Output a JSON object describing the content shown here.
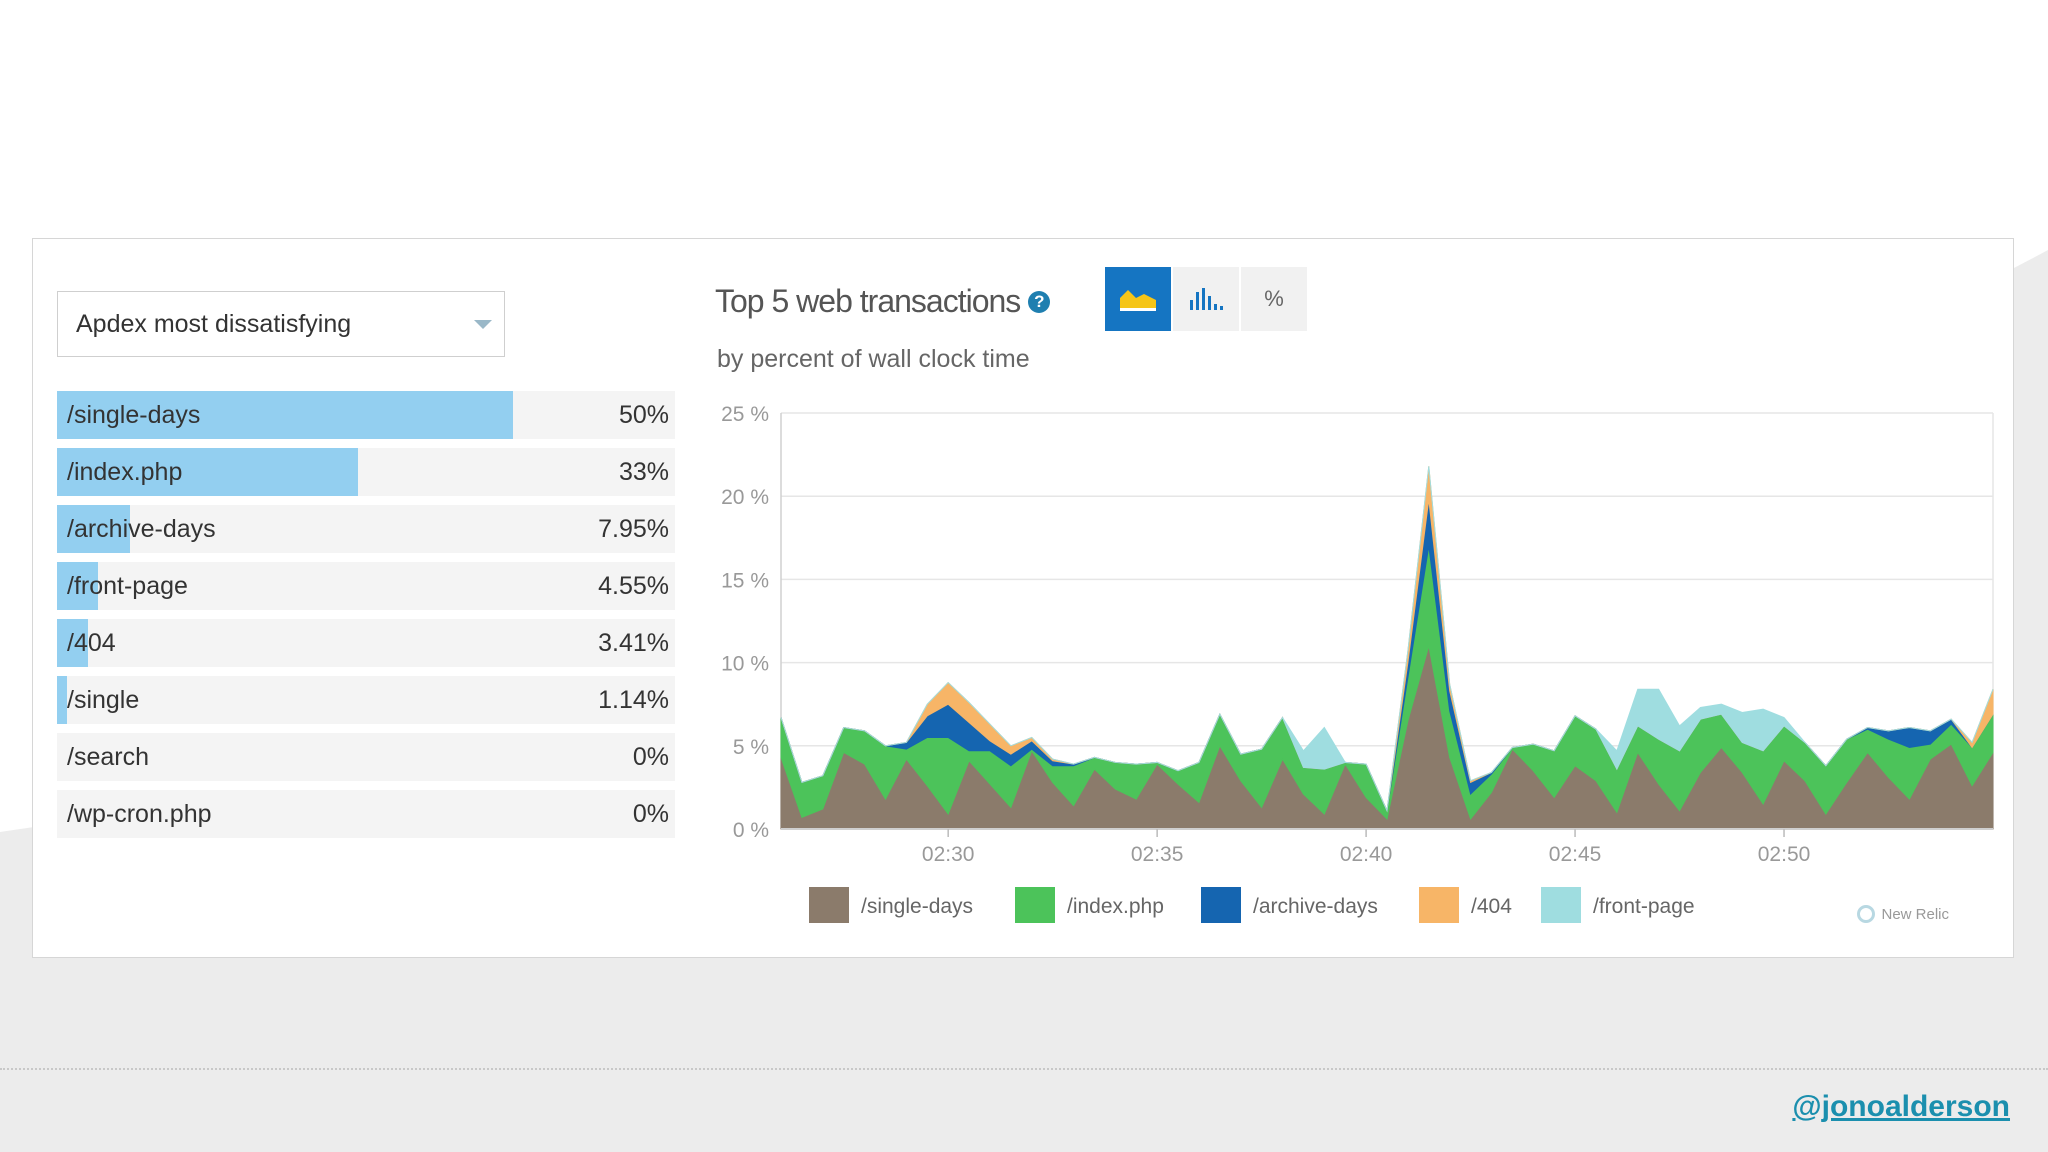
{
  "dropdown": {
    "selected": "Apdex most dissatisfying"
  },
  "transactions": [
    {
      "name": "/single-days",
      "pct_label": "50%",
      "fraction": 0.5
    },
    {
      "name": "/index.php",
      "pct_label": "33%",
      "fraction": 0.33
    },
    {
      "name": "/archive-days",
      "pct_label": "7.95%",
      "fraction": 0.0795
    },
    {
      "name": "/front-page",
      "pct_label": "4.55%",
      "fraction": 0.0455
    },
    {
      "name": "/404",
      "pct_label": "3.41%",
      "fraction": 0.0341
    },
    {
      "name": "/single",
      "pct_label": "1.14%",
      "fraction": 0.0114
    },
    {
      "name": "/search",
      "pct_label": "0%",
      "fraction": 0
    },
    {
      "name": "/wp-cron.php",
      "pct_label": "0%",
      "fraction": 0
    }
  ],
  "chart_header": {
    "title": "Top 5 web transactions",
    "subtitle": "by percent of wall clock time",
    "percent_button_label": "%"
  },
  "watermark": "New Relic",
  "handle": "@jonoalderson",
  "colors": {
    "single_days": "#8b7b6b",
    "index_php": "#4cc35a",
    "archive_days": "#1565b0",
    "x404": "#f7b567",
    "front_page": "#9fdde0",
    "active_button": "#1575c2",
    "bar_fill": "#93cff0"
  },
  "chart_data": {
    "type": "area",
    "stacked": true,
    "title": "Top 5 web transactions",
    "subtitle": "by percent of wall clock time",
    "xlabel": "",
    "ylabel": "",
    "x": [
      26.0,
      26.5,
      27.0,
      27.5,
      28.0,
      28.5,
      29.0,
      29.5,
      30.0,
      30.5,
      31.0,
      31.5,
      32.0,
      32.5,
      33.0,
      33.5,
      34.0,
      34.5,
      35.0,
      35.5,
      36.0,
      36.5,
      37.0,
      37.5,
      38.0,
      38.5,
      39.0,
      39.5,
      40.0,
      40.5,
      41.0,
      41.5,
      42.0,
      42.5,
      43.0,
      43.5,
      44.0,
      44.5,
      45.0,
      45.5,
      46.0,
      46.5,
      47.0,
      47.5,
      48.0,
      48.5,
      49.0,
      49.5,
      50.0,
      50.5,
      51.0,
      51.5,
      52.0,
      52.5,
      53.0,
      53.5,
      54.0,
      54.5,
      55.0
    ],
    "x_tick_values": [
      30,
      35,
      40,
      45,
      50
    ],
    "x_tick_labels": [
      "02:30",
      "02:35",
      "02:40",
      "02:45",
      "02:50"
    ],
    "xlim": [
      26,
      55
    ],
    "ylim": [
      0,
      25
    ],
    "y_ticks": [
      0,
      5,
      10,
      15,
      20,
      25
    ],
    "y_tick_labels": [
      "0 %",
      "5 %",
      "10 %",
      "15 %",
      "20 %",
      "25 %"
    ],
    "grid": true,
    "legend_position": "bottom",
    "series": [
      {
        "name": "/single-days",
        "color": "#8b7b6b",
        "values": [
          4.3,
          0.7,
          1.2,
          4.6,
          3.9,
          1.8,
          4.2,
          2.6,
          0.9,
          4.1,
          2.7,
          1.3,
          4.7,
          2.8,
          1.4,
          3.6,
          2.4,
          1.8,
          3.9,
          2.7,
          1.6,
          5.0,
          2.9,
          1.3,
          4.2,
          2.1,
          0.9,
          3.9,
          1.9,
          0.6,
          6.5,
          11.0,
          4.3,
          0.6,
          2.2,
          4.8,
          3.5,
          1.9,
          3.8,
          2.9,
          1.0,
          4.6,
          2.7,
          1.1,
          3.4,
          4.9,
          3.4,
          1.5,
          4.1,
          2.9,
          0.9,
          2.8,
          4.6,
          3.1,
          1.8,
          4.2,
          5.1,
          2.6,
          4.6
        ]
      },
      {
        "name": "/index.php",
        "color": "#4cc35a",
        "values": [
          2.4,
          2.1,
          2.0,
          1.5,
          2.0,
          3.2,
          0.6,
          2.9,
          4.6,
          0.6,
          2.0,
          2.5,
          0.1,
          1.0,
          2.4,
          0.7,
          1.6,
          2.1,
          0.1,
          0.8,
          2.4,
          1.9,
          1.6,
          3.5,
          2.5,
          1.6,
          2.7,
          0.1,
          2.0,
          0.5,
          2.6,
          6.0,
          2.8,
          1.5,
          1.1,
          0.1,
          1.6,
          2.8,
          3.0,
          3.1,
          2.6,
          1.6,
          2.7,
          3.6,
          3.2,
          2.0,
          1.8,
          3.2,
          2.1,
          2.3,
          2.9,
          2.6,
          1.4,
          2.3,
          3.1,
          0.9,
          1.2,
          2.3,
          2.3
        ]
      },
      {
        "name": "/archive-days",
        "color": "#1565b0",
        "values": [
          0,
          0,
          0,
          0,
          0,
          0,
          0.4,
          1.3,
          2.0,
          1.7,
          0.6,
          0.7,
          0.5,
          0.3,
          0.1,
          0,
          0,
          0,
          0,
          0,
          0,
          0,
          0,
          0,
          0,
          0,
          0,
          0,
          0,
          0,
          0.9,
          2.8,
          1.2,
          0.7,
          0.1,
          0,
          0,
          0,
          0,
          0,
          0,
          0,
          0,
          0,
          0,
          0,
          0,
          0,
          0,
          0,
          0,
          0,
          0.1,
          0.5,
          1.2,
          0.8,
          0.3,
          0,
          0
        ]
      },
      {
        "name": "/404",
        "color": "#f7b567",
        "values": [
          0,
          0,
          0,
          0,
          0,
          0,
          0,
          0.7,
          1.3,
          1.2,
          1.0,
          0.5,
          0.2,
          0.1,
          0,
          0,
          0,
          0,
          0,
          0,
          0,
          0,
          0,
          0,
          0,
          0,
          0,
          0,
          0,
          0,
          0.7,
          2.0,
          0.4,
          0.1,
          0,
          0,
          0,
          0,
          0,
          0,
          0,
          0,
          0,
          0,
          0,
          0,
          0,
          0,
          0,
          0,
          0,
          0,
          0,
          0,
          0,
          0,
          0,
          0.3,
          1.5
        ]
      },
      {
        "name": "/front-page",
        "color": "#9fdde0",
        "values": [
          0,
          0,
          0,
          0,
          0,
          0,
          0,
          0,
          0,
          0,
          0,
          0,
          0,
          0,
          0,
          0,
          0,
          0,
          0,
          0,
          0,
          0,
          0,
          0,
          0,
          1.0,
          2.5,
          0,
          0,
          0,
          0,
          0,
          0,
          0,
          0,
          0,
          0,
          0,
          0,
          0,
          1.1,
          2.2,
          3.0,
          1.5,
          0.7,
          0.6,
          1.8,
          2.5,
          0.5,
          0,
          0,
          0,
          0,
          0,
          0,
          0,
          0,
          0,
          0
        ]
      }
    ]
  }
}
